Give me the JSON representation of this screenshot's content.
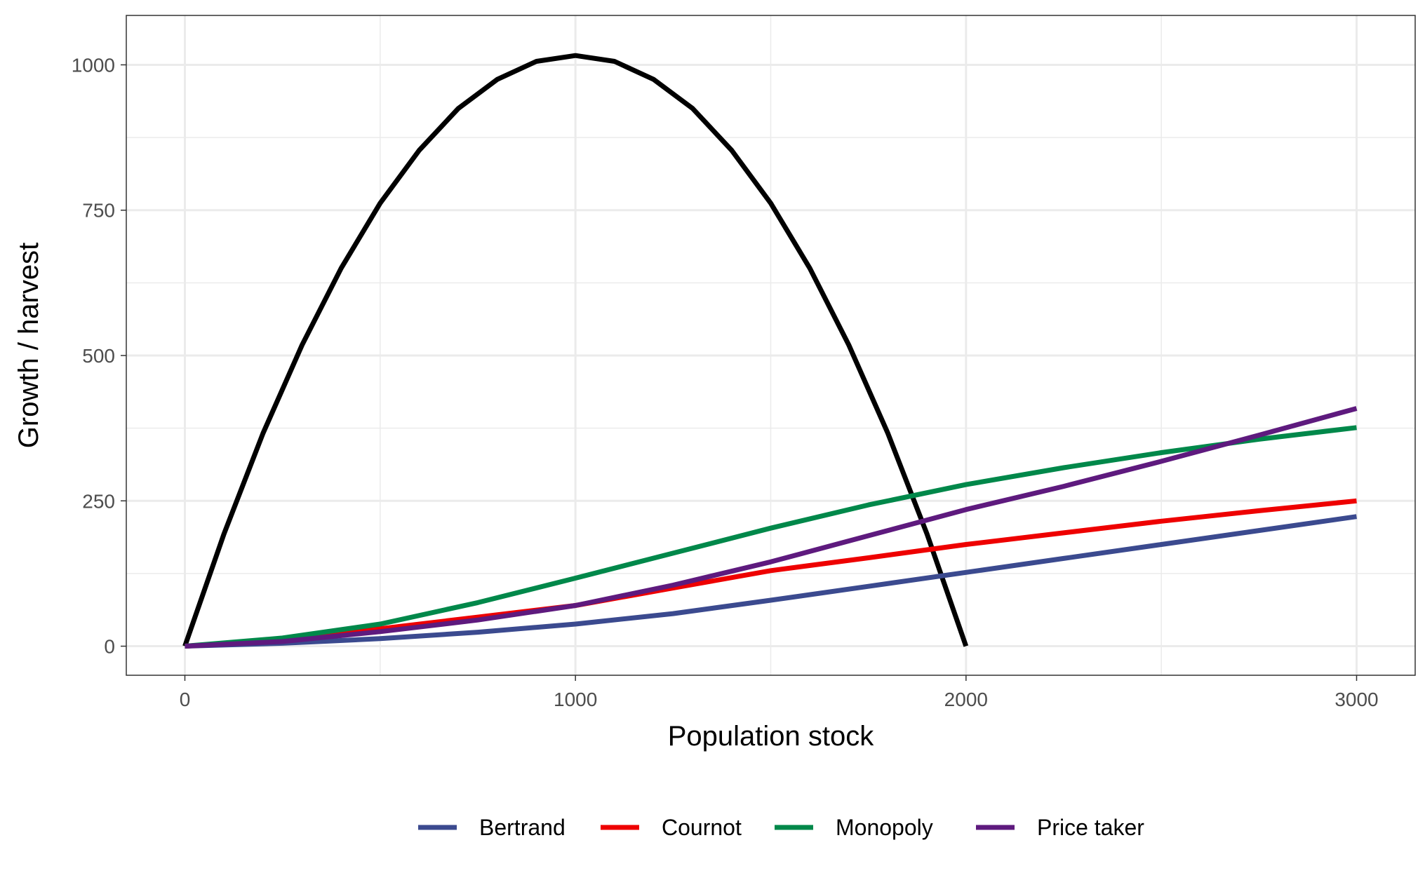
{
  "chart_data": {
    "type": "line",
    "title": "",
    "xlabel": "Population stock",
    "ylabel": "Growth / harvest",
    "xlim": [
      -150,
      3150
    ],
    "ylim": [
      -50,
      1085
    ],
    "x_ticks": [
      0,
      1000,
      2000,
      3000
    ],
    "x_tick_labels": [
      "0",
      "1000",
      "2000",
      "3000"
    ],
    "y_ticks": [
      0,
      250,
      500,
      750,
      1000
    ],
    "y_tick_labels": [
      "0",
      "250",
      "500",
      "750",
      "1000"
    ],
    "grid": true,
    "legend_position": "bottom",
    "growth_curve": {
      "color": "#000000",
      "x": [
        0,
        100,
        200,
        300,
        400,
        500,
        600,
        700,
        800,
        900,
        1000,
        1100,
        1200,
        1300,
        1400,
        1500,
        1600,
        1700,
        1800,
        1900,
        2000
      ],
      "y": [
        0,
        193,
        366,
        518,
        650,
        762,
        853,
        925,
        975,
        1006,
        1016,
        1006,
        975,
        925,
        853,
        762,
        650,
        518,
        366,
        193,
        0
      ]
    },
    "series": [
      {
        "name": "Bertrand",
        "color": "#3b4a8f",
        "x": [
          0,
          250,
          500,
          750,
          1000,
          1250,
          1500,
          1750,
          2000,
          2250,
          2500,
          2750,
          3000
        ],
        "y": [
          0,
          5,
          13,
          24,
          38,
          56,
          79,
          103,
          127,
          151,
          175,
          199,
          223
        ]
      },
      {
        "name": "Cournot",
        "color": "#ee0000",
        "x": [
          0,
          250,
          500,
          750,
          1000,
          1250,
          1500,
          1750,
          2000,
          2250,
          2500,
          2750,
          3000
        ],
        "y": [
          0,
          10,
          30,
          50,
          70,
          100,
          130,
          152,
          175,
          195,
          215,
          233,
          250
        ]
      },
      {
        "name": "Monopoly",
        "color": "#00884a",
        "x": [
          0,
          250,
          500,
          750,
          1000,
          1250,
          1500,
          1750,
          2000,
          2250,
          2500,
          2750,
          3000
        ],
        "y": [
          0,
          14,
          38,
          75,
          117,
          160,
          203,
          243,
          278,
          307,
          333,
          356,
          376
        ]
      },
      {
        "name": "Price taker",
        "color": "#5e1a7e",
        "x": [
          0,
          250,
          500,
          750,
          1000,
          1250,
          1500,
          1750,
          2000,
          2250,
          2500,
          2750,
          3000
        ],
        "y": [
          0,
          8,
          25,
          45,
          70,
          105,
          145,
          190,
          235,
          275,
          318,
          363,
          409
        ]
      }
    ]
  }
}
